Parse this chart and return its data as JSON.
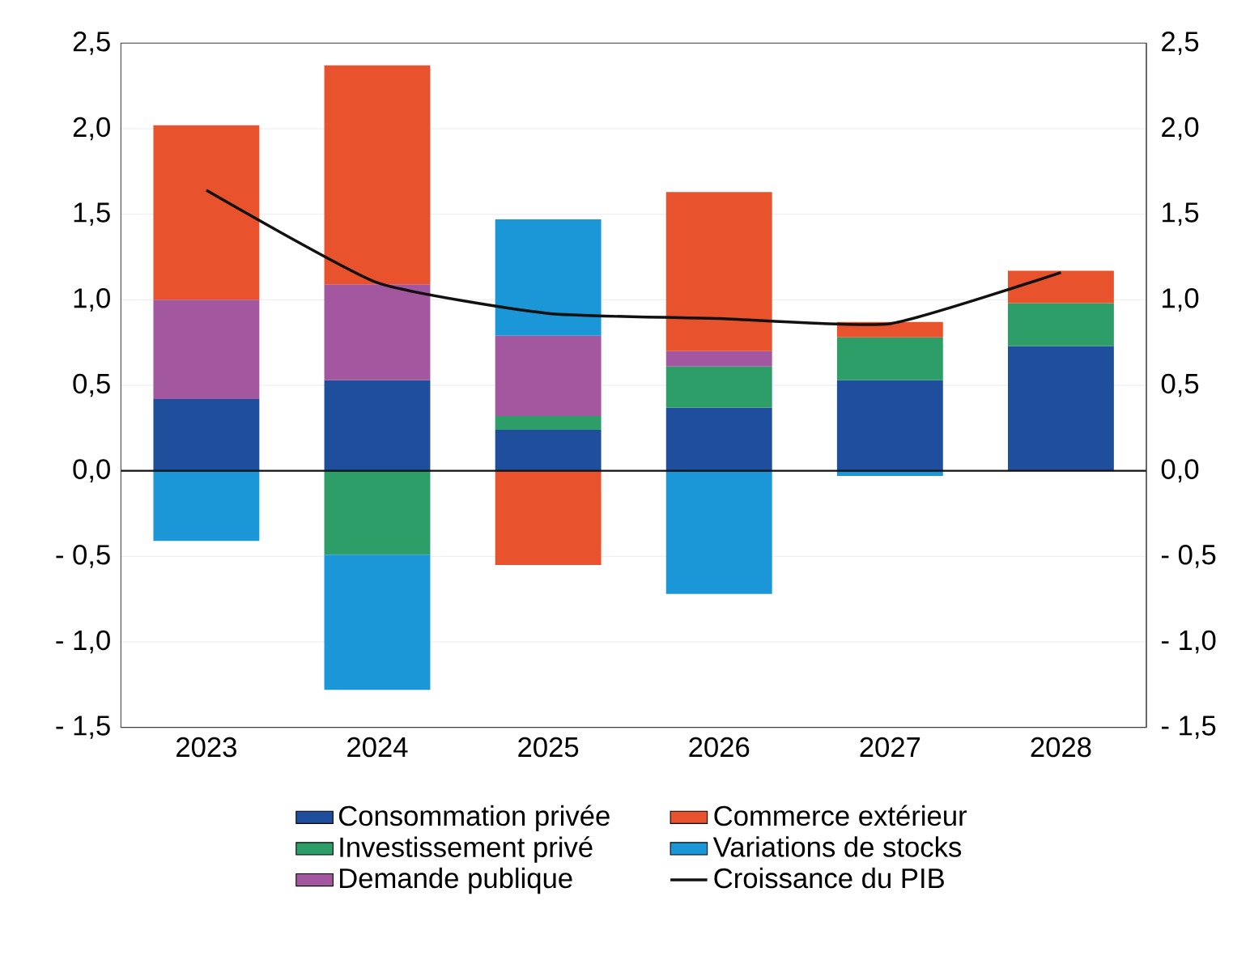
{
  "chart_data": {
    "type": "bar",
    "stacked": true,
    "categories": [
      "2023",
      "2024",
      "2025",
      "2026",
      "2027",
      "2028"
    ],
    "series": [
      {
        "name": "Consommation privée",
        "color": "#1f4e9c",
        "values": [
          0.42,
          0.53,
          0.24,
          0.37,
          0.53,
          0.73
        ]
      },
      {
        "name": "Investissement privé",
        "color": "#2e9e68",
        "values": [
          null,
          -0.49,
          0.08,
          0.24,
          0.25,
          0.25
        ]
      },
      {
        "name": "Demande publique",
        "color": "#a3579f",
        "values": [
          0.58,
          0.56,
          0.47,
          0.09,
          null,
          null
        ]
      },
      {
        "name": "Commerce extérieur",
        "color": "#e8532e",
        "values": [
          1.02,
          1.28,
          -0.55,
          0.93,
          0.09,
          0.19
        ]
      },
      {
        "name": "Variations de stocks",
        "color": "#1b96d6",
        "values": [
          -0.41,
          -0.79,
          0.68,
          -0.72,
          -0.03,
          null
        ]
      },
      {
        "name": "Croissance du PIB",
        "type": "line",
        "color": "#111111",
        "values": [
          1.64,
          1.1,
          0.92,
          0.89,
          0.86,
          1.16
        ]
      }
    ],
    "ylim": [
      -1.5,
      2.5
    ],
    "yticks": [
      {
        "value": -1.5,
        "label": "- 1,5"
      },
      {
        "value": -1.0,
        "label": "- 1,0"
      },
      {
        "value": -0.5,
        "label": "- 0,5"
      },
      {
        "value": 0,
        "label": "0,0"
      },
      {
        "value": 0.5,
        "label": "0,5"
      },
      {
        "value": 1.0,
        "label": "1,0"
      },
      {
        "value": 1.5,
        "label": "1,5"
      },
      {
        "value": 2.0,
        "label": "2,0"
      },
      {
        "value": 2.5,
        "label": "2,5"
      }
    ],
    "y2lim": [
      -1.5,
      2.5
    ],
    "y2ticks": [
      {
        "value": -1.5,
        "label": "- 1,5"
      },
      {
        "value": -1.0,
        "label": "- 1,0"
      },
      {
        "value": -0.5,
        "label": "- 0,5"
      },
      {
        "value": 0,
        "label": "0,0"
      },
      {
        "value": 0.5,
        "label": "0,5"
      },
      {
        "value": 1.0,
        "label": "1,0"
      },
      {
        "value": 1.5,
        "label": "1,5"
      },
      {
        "value": 2.0,
        "label": "2,0"
      },
      {
        "value": 2.5,
        "label": "2,5"
      }
    ],
    "ref_lines": [
      {
        "axis": "y",
        "value": 0,
        "color": "#111111"
      }
    ],
    "grid": "y",
    "legend": "bottom"
  }
}
